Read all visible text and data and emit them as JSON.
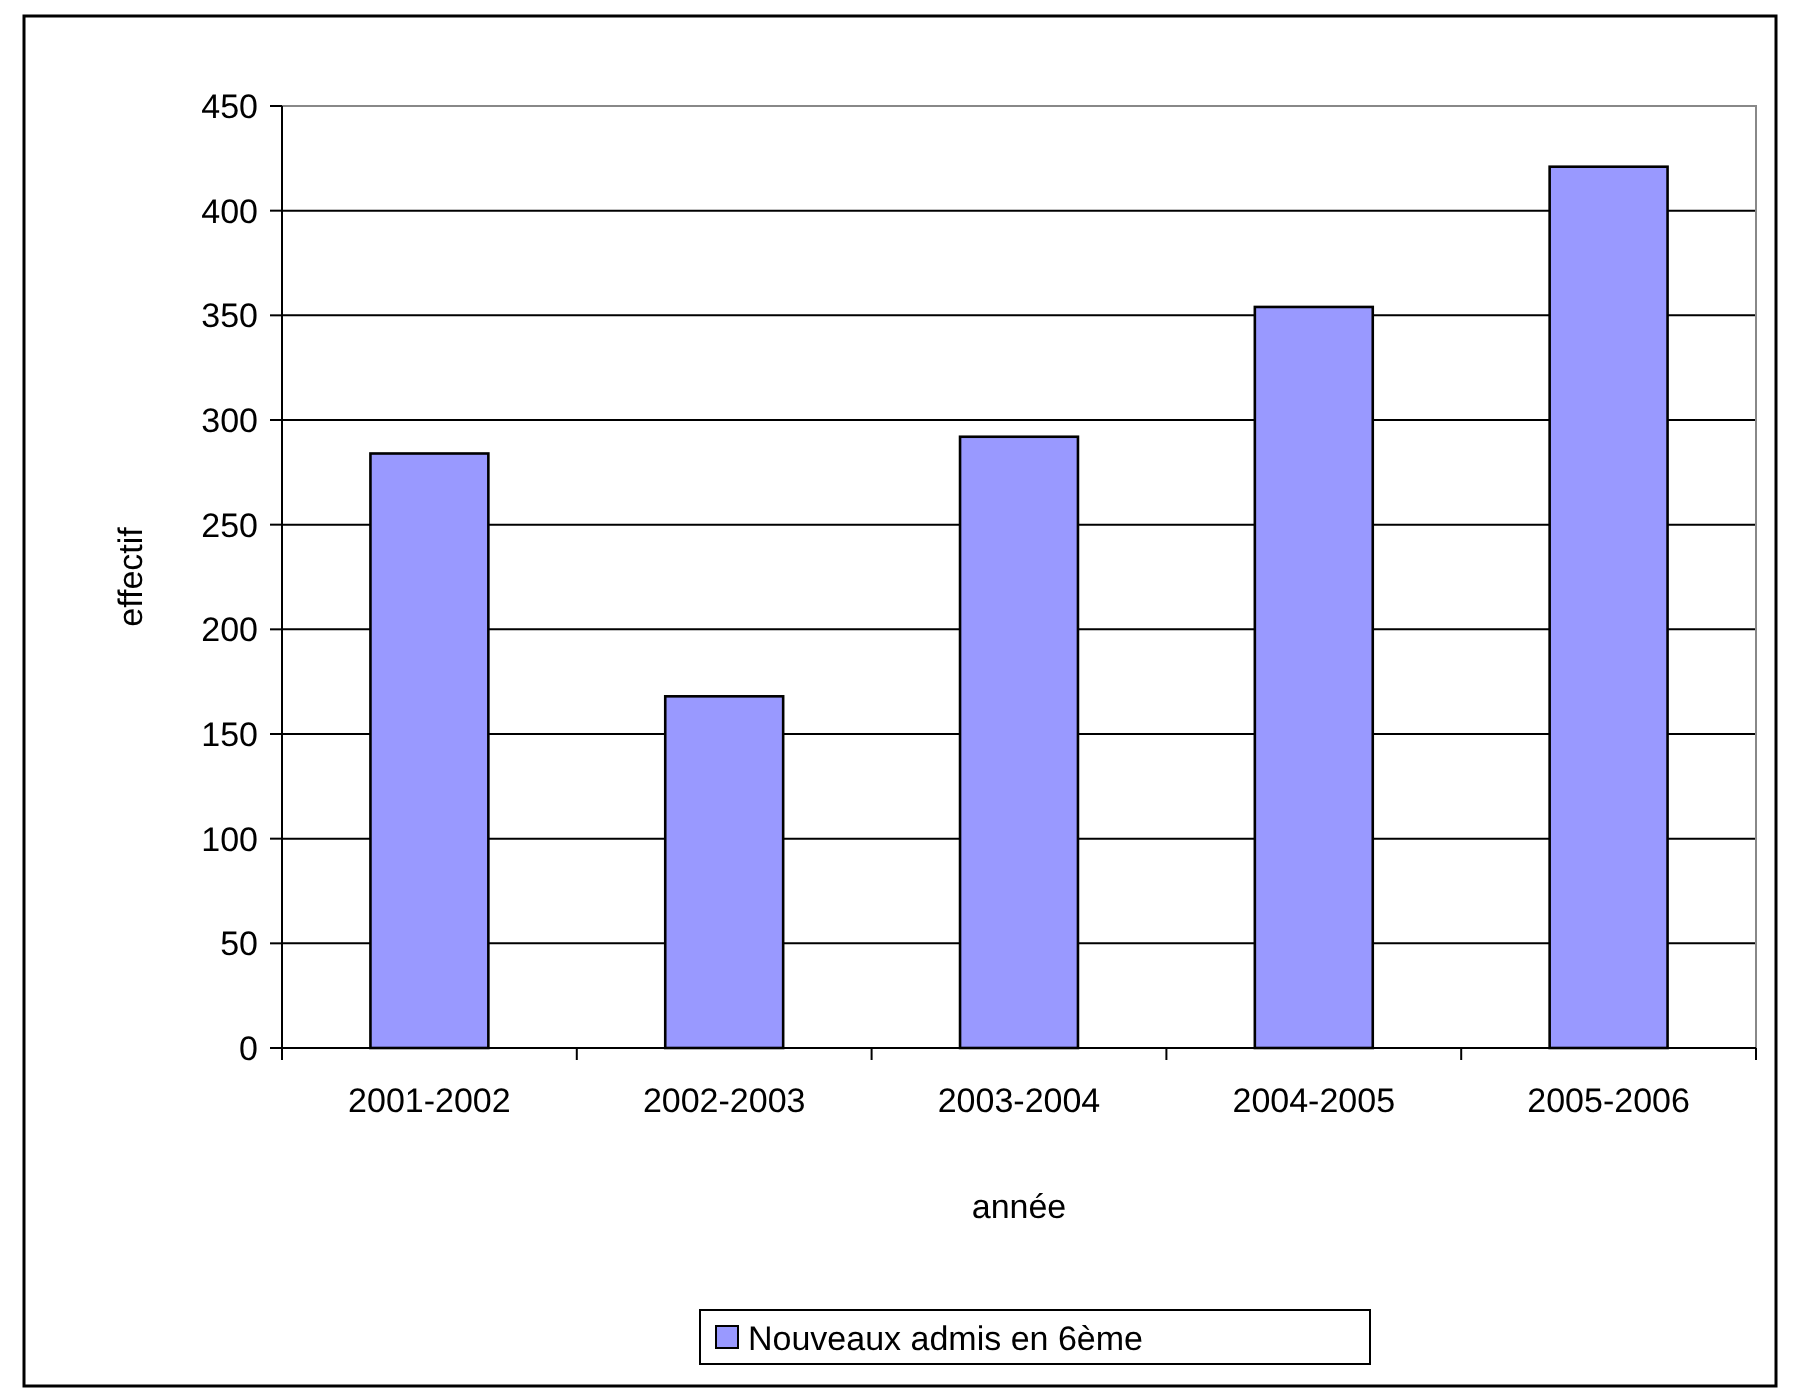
{
  "chart_data": {
    "type": "bar",
    "xlabel": "année",
    "ylabel": "effectif",
    "categories": [
      "2001-2002",
      "2002-2003",
      "2003-2004",
      "2004-2005",
      "2005-2006"
    ],
    "series": [
      {
        "name": "Nouveaux admis en 6ème",
        "color": "#9999ff",
        "values": [
          284,
          168,
          292,
          354,
          421
        ]
      }
    ],
    "ylim": [
      0,
      450
    ],
    "yticks": [
      0,
      50,
      100,
      150,
      200,
      250,
      300,
      350,
      400,
      450
    ],
    "grid": "y",
    "legend": "bottom"
  }
}
